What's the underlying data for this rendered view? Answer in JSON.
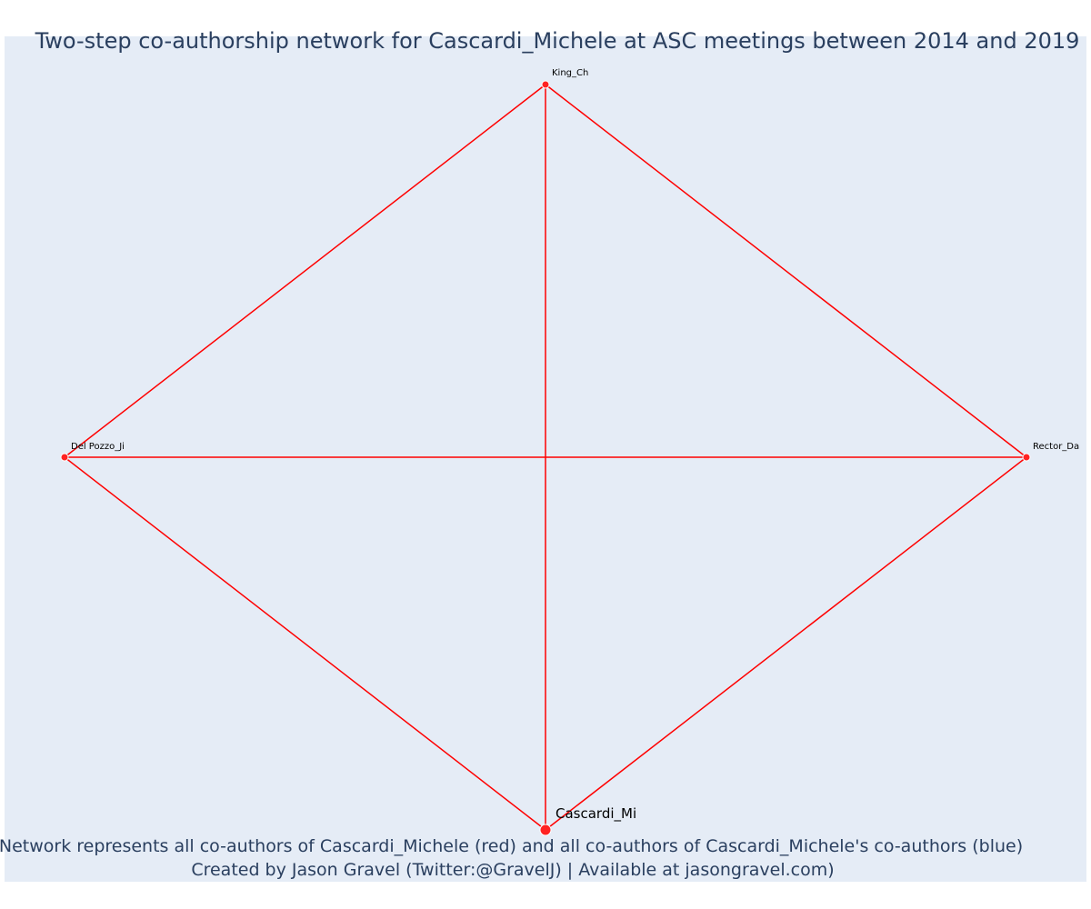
{
  "title": "Two-step co-authorship network for Cascardi_Michele at ASC meetings between 2014 and 2019",
  "colors": {
    "background": "#e5ecf6",
    "edge": "#ff0000",
    "node": "#ff2222",
    "node_outline": "#ffffff",
    "title": "#2a3f5f"
  },
  "network": {
    "nodes": [
      {
        "id": "king",
        "label": "King_Ch",
        "kind": "coauthor"
      },
      {
        "id": "delpozzo",
        "label": "Del Pozzo_Ji",
        "kind": "coauthor"
      },
      {
        "id": "rector",
        "label": "Rector_Da",
        "kind": "coauthor"
      },
      {
        "id": "cascardi",
        "label": "Cascardi_Mi",
        "kind": "focal"
      }
    ],
    "edges": [
      {
        "source": "king",
        "target": "delpozzo"
      },
      {
        "source": "king",
        "target": "rector"
      },
      {
        "source": "king",
        "target": "cascardi"
      },
      {
        "source": "delpozzo",
        "target": "rector"
      },
      {
        "source": "delpozzo",
        "target": "cascardi"
      },
      {
        "source": "rector",
        "target": "cascardi"
      }
    ]
  },
  "footer": {
    "line1": "Network represents all co-authors of Cascardi_Michele (red) and all co-authors of Cascardi_Michele's co-authors (blue)",
    "line2": "Created by Jason Gravel (Twitter:@GravelJ) | Available at jasongravel.com)"
  }
}
